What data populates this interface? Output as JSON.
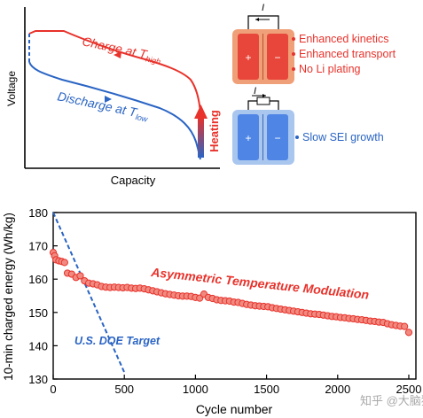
{
  "top_panel": {
    "y_axis_label": "Voltage",
    "x_axis_label": "Capacity",
    "charge_label_prefix": "Charge  at T",
    "charge_label_sub": "high",
    "discharge_label_prefix": "Discharge at T",
    "discharge_label_sub": "low",
    "heating_label": "Heating",
    "current_label": "I",
    "plus_sign": "+",
    "minus_sign": "−",
    "hot_cell_bullets": [
      "Enhanced kinetics",
      "Enhanced transport",
      "No Li plating"
    ],
    "cold_cell_bullets": [
      "Slow SEI growth"
    ],
    "colors": {
      "charge": "#e8322b",
      "discharge": "#2a64c4",
      "hot_cell_bg": "#f0a078",
      "hot_cell_plate": "#e8463a",
      "cold_cell_bg": "#a9c6ef",
      "cold_cell_plate": "#4f86e6"
    }
  },
  "watermark": "知乎 @大脑猫",
  "chart_data": {
    "type": "scatter",
    "xlabel": "Cycle number",
    "ylabel": "10-min charged energy (Wh/kg)",
    "xlim": [
      0,
      2550
    ],
    "ylim": [
      130,
      180
    ],
    "x_ticks": [
      0,
      500,
      1000,
      1500,
      2000,
      2500
    ],
    "y_ticks": [
      130,
      140,
      150,
      160,
      170,
      180
    ],
    "series": [
      {
        "name": "Asymmetric Temperature Modulation",
        "color": "#e8322b",
        "marker": "circle",
        "points": [
          [
            0,
            168
          ],
          [
            10,
            167
          ],
          [
            20,
            165.8
          ],
          [
            40,
            165.5
          ],
          [
            60,
            165.3
          ],
          [
            80,
            165
          ],
          [
            100,
            161.8
          ],
          [
            130,
            161.5
          ],
          [
            160,
            160.5
          ],
          [
            190,
            161
          ],
          [
            220,
            159.5
          ],
          [
            250,
            158.8
          ],
          [
            280,
            158.6
          ],
          [
            310,
            158.3
          ],
          [
            340,
            157.8
          ],
          [
            370,
            157.6
          ],
          [
            400,
            157.5
          ],
          [
            430,
            157.6
          ],
          [
            460,
            157.5
          ],
          [
            490,
            157.4
          ],
          [
            520,
            157.5
          ],
          [
            550,
            157.3
          ],
          [
            580,
            157.2
          ],
          [
            610,
            157.3
          ],
          [
            640,
            157.1
          ],
          [
            670,
            156.8
          ],
          [
            700,
            156.5
          ],
          [
            730,
            156.2
          ],
          [
            760,
            155.9
          ],
          [
            790,
            155.6
          ],
          [
            820,
            155.4
          ],
          [
            850,
            155.2
          ],
          [
            880,
            155
          ],
          [
            910,
            154.9
          ],
          [
            940,
            154.9
          ],
          [
            970,
            154.8
          ],
          [
            1000,
            154.5
          ],
          [
            1030,
            154.3
          ],
          [
            1060,
            155.5
          ],
          [
            1090,
            154.5
          ],
          [
            1120,
            154.2
          ],
          [
            1150,
            153.8
          ],
          [
            1180,
            153.6
          ],
          [
            1210,
            153.5
          ],
          [
            1240,
            153.4
          ],
          [
            1270,
            153.1
          ],
          [
            1300,
            153
          ],
          [
            1330,
            152.7
          ],
          [
            1360,
            152.4
          ],
          [
            1390,
            152.2
          ],
          [
            1420,
            152
          ],
          [
            1450,
            151.9
          ],
          [
            1480,
            151.8
          ],
          [
            1510,
            151.7
          ],
          [
            1540,
            151.4
          ],
          [
            1570,
            151.2
          ],
          [
            1600,
            151
          ],
          [
            1630,
            150.8
          ],
          [
            1660,
            150.6
          ],
          [
            1690,
            150.4
          ],
          [
            1720,
            150.2
          ],
          [
            1750,
            150
          ],
          [
            1780,
            149.8
          ],
          [
            1810,
            149.6
          ],
          [
            1840,
            149.5
          ],
          [
            1870,
            149.4
          ],
          [
            1900,
            149.2
          ],
          [
            1930,
            149
          ],
          [
            1960,
            148.8
          ],
          [
            1990,
            148.7
          ],
          [
            2020,
            148.5
          ],
          [
            2050,
            148.4
          ],
          [
            2080,
            148.2
          ],
          [
            2110,
            148.1
          ],
          [
            2140,
            147.9
          ],
          [
            2170,
            147.8
          ],
          [
            2200,
            147.6
          ],
          [
            2230,
            147.4
          ],
          [
            2260,
            147.3
          ],
          [
            2290,
            147.1
          ],
          [
            2320,
            147
          ],
          [
            2350,
            146.6
          ],
          [
            2380,
            146.3
          ],
          [
            2410,
            146.1
          ],
          [
            2440,
            145.9
          ],
          [
            2470,
            145.8
          ],
          [
            2500,
            144
          ]
        ]
      },
      {
        "name": "U.S. DOE Target",
        "color": "#2a64c4",
        "style": "dashed",
        "line": [
          [
            0,
            180
          ],
          [
            500,
            132
          ]
        ]
      }
    ],
    "annotations": [
      {
        "text": "Asymmetric Temperature Modulation",
        "color": "#e8322b"
      },
      {
        "text": "U.S. DOE Target",
        "color": "#2a64c4"
      }
    ]
  }
}
